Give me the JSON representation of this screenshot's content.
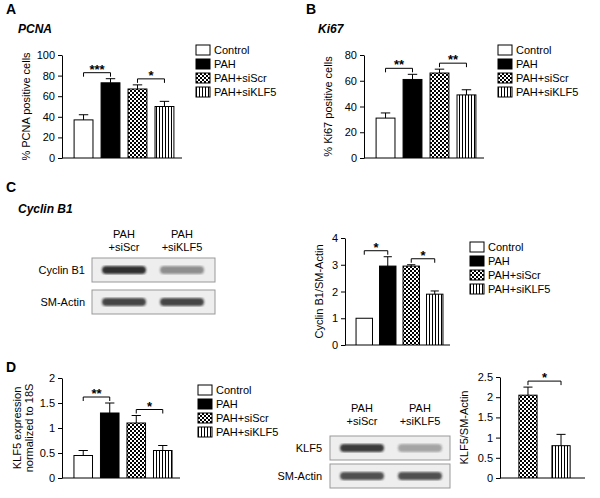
{
  "panel_labels": [
    "A",
    "B",
    "C",
    "D"
  ],
  "chart_data": [
    {
      "type": "bar",
      "title": "PCNA",
      "ylabel": "% PCNA positive cells",
      "categories": [
        "Control",
        "PAH",
        "PAH+siScr",
        "PAH+siKLF5"
      ],
      "values": [
        37,
        73,
        67,
        50
      ],
      "errors": [
        5,
        4,
        4,
        5
      ],
      "ylim": [
        0,
        100
      ],
      "yticks": [
        0,
        20,
        40,
        60,
        80,
        100
      ],
      "legend": "right",
      "tick_labels": "y",
      "annotations": [
        {
          "text": "***",
          "between": [
            0,
            1
          ]
        },
        {
          "text": "*",
          "between": [
            2,
            3
          ]
        }
      ]
    },
    {
      "type": "bar",
      "title": "Ki67",
      "ylabel": "% Ki67 positive cells",
      "categories": [
        "Control",
        "PAH",
        "PAH+siScr",
        "PAH+siKLF5"
      ],
      "values": [
        31,
        61,
        66,
        49
      ],
      "errors": [
        4,
        4,
        3,
        4
      ],
      "ylim": [
        0,
        80
      ],
      "yticks": [
        0,
        20,
        40,
        60,
        80
      ],
      "legend": "right",
      "tick_labels": "y",
      "annotations": [
        {
          "text": "**",
          "between": [
            0,
            1
          ]
        },
        {
          "text": "**",
          "between": [
            2,
            3
          ]
        }
      ]
    },
    {
      "type": "bar",
      "title": "Cyclin B1",
      "ylabel": "Cyclin B1/SM-Actin",
      "categories": [
        "Control",
        "PAH",
        "PAH+siScr",
        "PAH+siKLF5"
      ],
      "values": [
        1,
        2.95,
        2.95,
        1.9
      ],
      "errors": [
        null,
        0.35,
        0.05,
        0.12
      ],
      "ylim": [
        0,
        4
      ],
      "yticks": [
        0,
        1,
        2,
        3,
        4
      ],
      "legend": "right",
      "tick_labels": "y",
      "annotations": [
        {
          "text": "*",
          "between": [
            0,
            1
          ]
        },
        {
          "text": "*",
          "between": [
            2,
            3
          ]
        }
      ]
    },
    {
      "type": "bar",
      "ylabel": [
        "KLF5 expression",
        "normalized to 18S"
      ],
      "categories": [
        "Control",
        "PAH",
        "PAH+siScr",
        "PAH+siKLF5"
      ],
      "values": [
        0.45,
        1.3,
        1.1,
        0.55
      ],
      "errors": [
        0.1,
        0.2,
        0.15,
        0.1
      ],
      "ylim": [
        0,
        2
      ],
      "yticks": [
        0,
        0.5,
        1,
        1.5,
        2
      ],
      "legend": "right",
      "tick_labels": "y",
      "annotations": [
        {
          "text": "**",
          "between": [
            0,
            1
          ]
        },
        {
          "text": "*",
          "between": [
            2,
            3
          ]
        }
      ]
    },
    {
      "type": "bar",
      "ylabel": "KLF5/SM-Actin",
      "categories": [
        null,
        null
      ],
      "values": [
        2.05,
        0.8
      ],
      "errors": [
        0.2,
        0.28
      ],
      "ylim": [
        0,
        2.5
      ],
      "yticks": [
        0,
        0.5,
        1,
        1.5,
        2,
        2.5
      ],
      "tick_labels": "y",
      "annotations": [
        {
          "text": "*",
          "between": [
            0,
            1
          ]
        }
      ]
    }
  ],
  "blots": [
    {
      "lanes": [
        [
          "PAH",
          "+siScr"
        ],
        [
          "PAH",
          "+siKLF5"
        ]
      ],
      "rows": [
        "Cyclin B1",
        "SM-Actin"
      ]
    },
    {
      "lanes": [
        [
          "PAH",
          "+siScr"
        ],
        [
          "PAH",
          "+siKLF5"
        ]
      ],
      "rows": [
        "KLF5",
        "SM-Actin"
      ]
    }
  ]
}
